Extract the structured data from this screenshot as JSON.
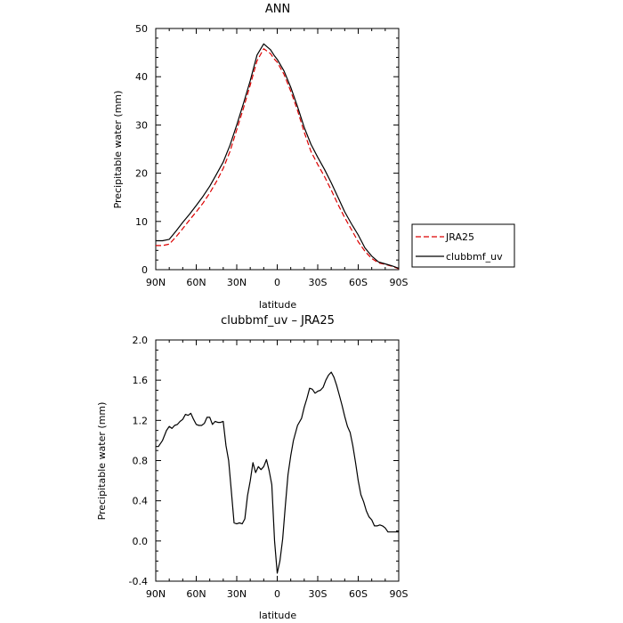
{
  "chart_data": [
    {
      "type": "line",
      "title": "ANN",
      "xlabel": "latitude",
      "ylabel": "Precipitable water (mm)",
      "xlim": [
        90,
        -90
      ],
      "ylim": [
        0,
        50
      ],
      "x_ticks": [
        "90N",
        "60N",
        "30N",
        "0",
        "30S",
        "60S",
        "90S"
      ],
      "y_ticks": [
        "0",
        "10",
        "20",
        "30",
        "40",
        "50"
      ],
      "legend": {
        "position": "right"
      },
      "series": [
        {
          "name": "JRA25",
          "color": "#dd0000",
          "dash": "dashed",
          "x": [
            90,
            85,
            80,
            75,
            70,
            65,
            60,
            55,
            50,
            45,
            40,
            35,
            30,
            25,
            20,
            15,
            10,
            5,
            2,
            0,
            -5,
            -10,
            -15,
            -20,
            -25,
            -30,
            -35,
            -40,
            -45,
            -50,
            -55,
            -60,
            -65,
            -70,
            -75,
            -80,
            -85,
            -90
          ],
          "values": [
            5.0,
            5.0,
            5.3,
            6.8,
            8.5,
            10.3,
            12.0,
            13.8,
            15.9,
            18.3,
            21.0,
            24.5,
            29.0,
            33.5,
            38.3,
            43.3,
            45.8,
            44.8,
            43.6,
            43.0,
            40.5,
            37.0,
            33.0,
            28.5,
            24.5,
            21.8,
            19.3,
            16.5,
            13.5,
            10.8,
            8.3,
            5.8,
            3.8,
            2.3,
            1.4,
            1.1,
            0.7,
            0.2
          ]
        },
        {
          "name": "clubbmf_uv",
          "color": "#000000",
          "dash": "solid",
          "x": [
            90,
            85,
            80,
            75,
            70,
            65,
            60,
            55,
            50,
            45,
            40,
            35,
            30,
            25,
            20,
            15,
            10,
            5,
            2,
            0,
            -5,
            -10,
            -15,
            -20,
            -25,
            -30,
            -35,
            -40,
            -45,
            -50,
            -55,
            -60,
            -65,
            -70,
            -75,
            -80,
            -85,
            -90
          ],
          "values": [
            6.0,
            6.0,
            6.3,
            8.0,
            9.8,
            11.5,
            13.3,
            15.2,
            17.3,
            19.8,
            22.3,
            25.8,
            30.0,
            34.5,
            39.2,
            44.5,
            46.8,
            45.6,
            44.3,
            43.6,
            41.2,
            37.8,
            33.8,
            29.5,
            26.0,
            23.3,
            20.8,
            18.0,
            15.0,
            12.0,
            9.5,
            7.2,
            4.5,
            2.8,
            1.6,
            1.2,
            0.8,
            0.3
          ]
        }
      ]
    },
    {
      "type": "line",
      "title": "clubbmf_uv – JRA25",
      "xlabel": "latitude",
      "ylabel": "Precipitable water (mm)",
      "xlim": [
        90,
        -90
      ],
      "ylim": [
        -0.4,
        2.0
      ],
      "x_ticks": [
        "90N",
        "60N",
        "30N",
        "0",
        "30S",
        "60S",
        "90S"
      ],
      "y_ticks": [
        "-0.4",
        "0.0",
        "0.4",
        "0.8",
        "1.2",
        "1.6",
        "2.0"
      ],
      "series": [
        {
          "color": "#000000",
          "dash": "solid",
          "x": [
            90,
            88,
            85,
            82,
            80,
            78,
            76,
            74,
            72,
            70,
            68,
            66,
            64,
            62,
            60,
            58,
            56,
            54,
            52,
            50,
            48,
            46,
            44,
            42,
            40,
            38,
            36,
            34,
            32,
            30,
            28,
            26,
            24,
            22,
            20,
            18,
            16,
            14,
            12,
            10,
            8,
            6,
            4,
            2,
            0,
            -2,
            -4,
            -6,
            -8,
            -10,
            -12,
            -15,
            -18,
            -20,
            -22,
            -24,
            -26,
            -28,
            -30,
            -32,
            -34,
            -36,
            -38,
            -40,
            -42,
            -44,
            -46,
            -48,
            -50,
            -52,
            -54,
            -56,
            -58,
            -60,
            -62,
            -64,
            -66,
            -68,
            -70,
            -72,
            -74,
            -76,
            -78,
            -80,
            -82,
            -84,
            -86,
            -88,
            -90
          ],
          "values": [
            0.94,
            0.94,
            1.0,
            1.1,
            1.14,
            1.12,
            1.15,
            1.16,
            1.19,
            1.21,
            1.26,
            1.25,
            1.27,
            1.21,
            1.16,
            1.15,
            1.15,
            1.17,
            1.23,
            1.23,
            1.16,
            1.19,
            1.18,
            1.18,
            1.19,
            0.95,
            0.8,
            0.5,
            0.18,
            0.17,
            0.18,
            0.17,
            0.22,
            0.45,
            0.6,
            0.78,
            0.68,
            0.74,
            0.71,
            0.74,
            0.81,
            0.7,
            0.56,
            0.0,
            -0.32,
            -0.2,
            0.02,
            0.35,
            0.66,
            0.85,
            1.0,
            1.15,
            1.22,
            1.33,
            1.42,
            1.52,
            1.51,
            1.47,
            1.49,
            1.5,
            1.53,
            1.6,
            1.65,
            1.68,
            1.63,
            1.55,
            1.45,
            1.35,
            1.24,
            1.14,
            1.08,
            0.95,
            0.78,
            0.6,
            0.46,
            0.39,
            0.3,
            0.24,
            0.21,
            0.15,
            0.15,
            0.16,
            0.15,
            0.13,
            0.09,
            0.09,
            0.09,
            0.09,
            0.09
          ]
        }
      ]
    }
  ]
}
